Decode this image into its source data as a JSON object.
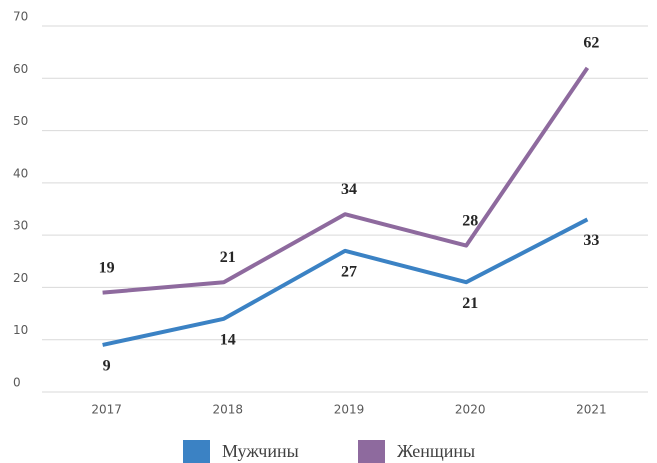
{
  "chart_data": {
    "type": "line",
    "categories": [
      "2017",
      "2018",
      "2019",
      "2020",
      "2021"
    ],
    "series": [
      {
        "name": "Мужчины",
        "color": "#3b82c4",
        "values": [
          9,
          14,
          27,
          21,
          33
        ]
      },
      {
        "name": "Женщины",
        "color": "#8e6a9e",
        "values": [
          19,
          21,
          34,
          28,
          62
        ]
      }
    ],
    "ylim": [
      0,
      70
    ],
    "yticks": [
      0,
      10,
      20,
      30,
      40,
      50,
      60,
      70
    ],
    "grid": true,
    "legend": "bottom"
  }
}
